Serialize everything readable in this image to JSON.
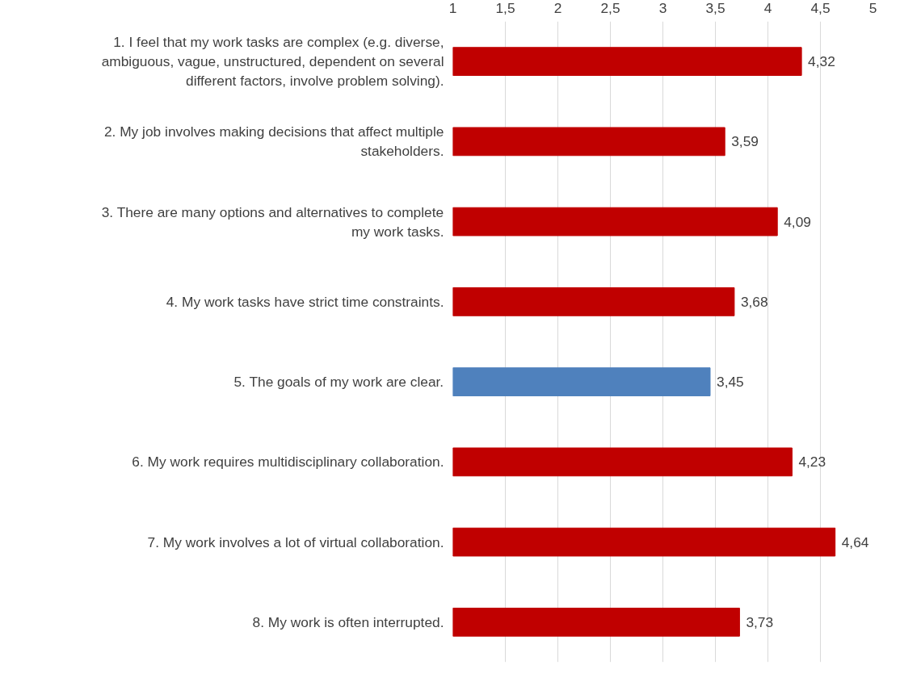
{
  "chart_data": {
    "type": "bar",
    "orientation": "horizontal",
    "categories": [
      "1. I feel that my work tasks are complex (e.g. diverse, ambiguous, vague, unstructured, dependent on several different factors, involve problem solving).",
      "2. My job involves making decisions that affect multiple stakeholders.",
      "3. There are many options and alternatives to complete my work tasks.",
      "4. My work tasks have strict time constraints.",
      "5. The goals of my work are clear.",
      "6. My work requires multidisciplinary collaboration.",
      "7. My work involves a lot of virtual collaboration.",
      "8. My work is often interrupted."
    ],
    "values": [
      4.32,
      3.59,
      4.09,
      3.68,
      3.45,
      4.23,
      4.64,
      3.73
    ],
    "value_labels": [
      "4,32",
      "3,59",
      "4,09",
      "3,68",
      "3,45",
      "4,23",
      "4,64",
      "3,73"
    ],
    "colors": [
      "#c00000",
      "#c00000",
      "#c00000",
      "#c00000",
      "#4f81bd",
      "#c00000",
      "#c00000",
      "#c00000"
    ],
    "xlim": [
      1,
      5
    ],
    "xticks": [
      1,
      {
        "value": 1.5,
        "label": "1,5"
      },
      2,
      {
        "value": 2.5,
        "label": "2,5"
      },
      3,
      {
        "value": 3.5,
        "label": "3,5"
      },
      4,
      {
        "value": 4.5,
        "label": "4,5"
      },
      5
    ],
    "grid": "x"
  }
}
